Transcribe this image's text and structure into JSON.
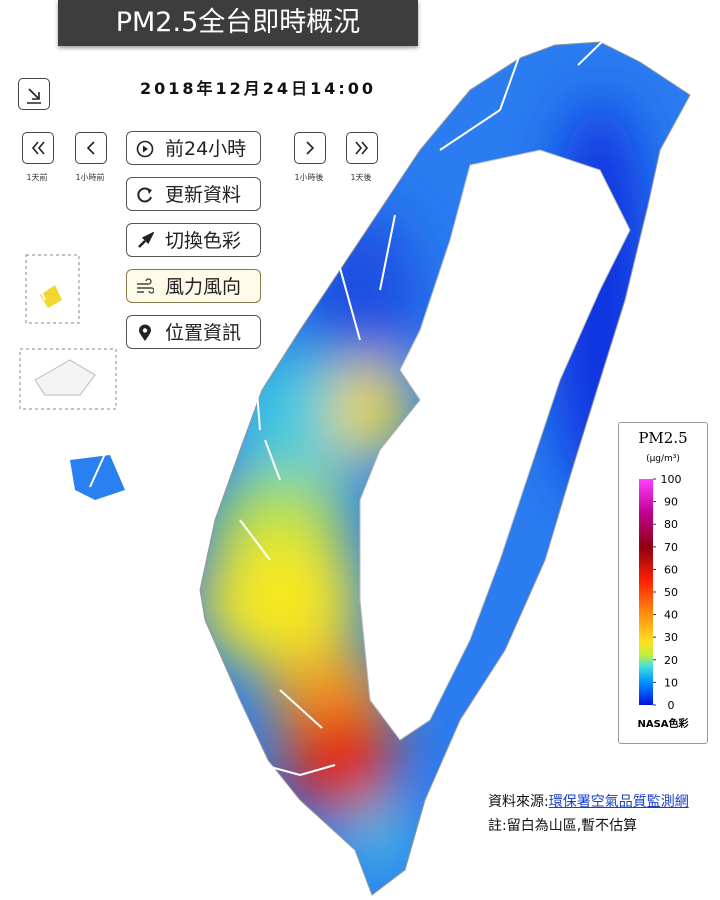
{
  "header": {
    "title": "PM2.5全台即時概況",
    "timestamp": "2018年12月24日14:00"
  },
  "nav": {
    "day_before": "1天前",
    "hour_before": "1小時前",
    "hour_after": "1小時後",
    "day_after": "1天後"
  },
  "menu": [
    "前24小時",
    "更新資料",
    "切換色彩",
    "風力風向",
    "位置資訊"
  ],
  "legend": {
    "title": "PM2.5",
    "unit": "(μg/m³)",
    "ticks": [
      0,
      10,
      20,
      30,
      40,
      50,
      60,
      70,
      80,
      90,
      100
    ],
    "range": [
      0,
      100
    ],
    "scheme": "NASA色彩"
  },
  "notes": {
    "source_label": "資料來源:",
    "source_link": "環保署空氣品質監測網",
    "note": "註:留白為山區,暫不估算"
  }
}
